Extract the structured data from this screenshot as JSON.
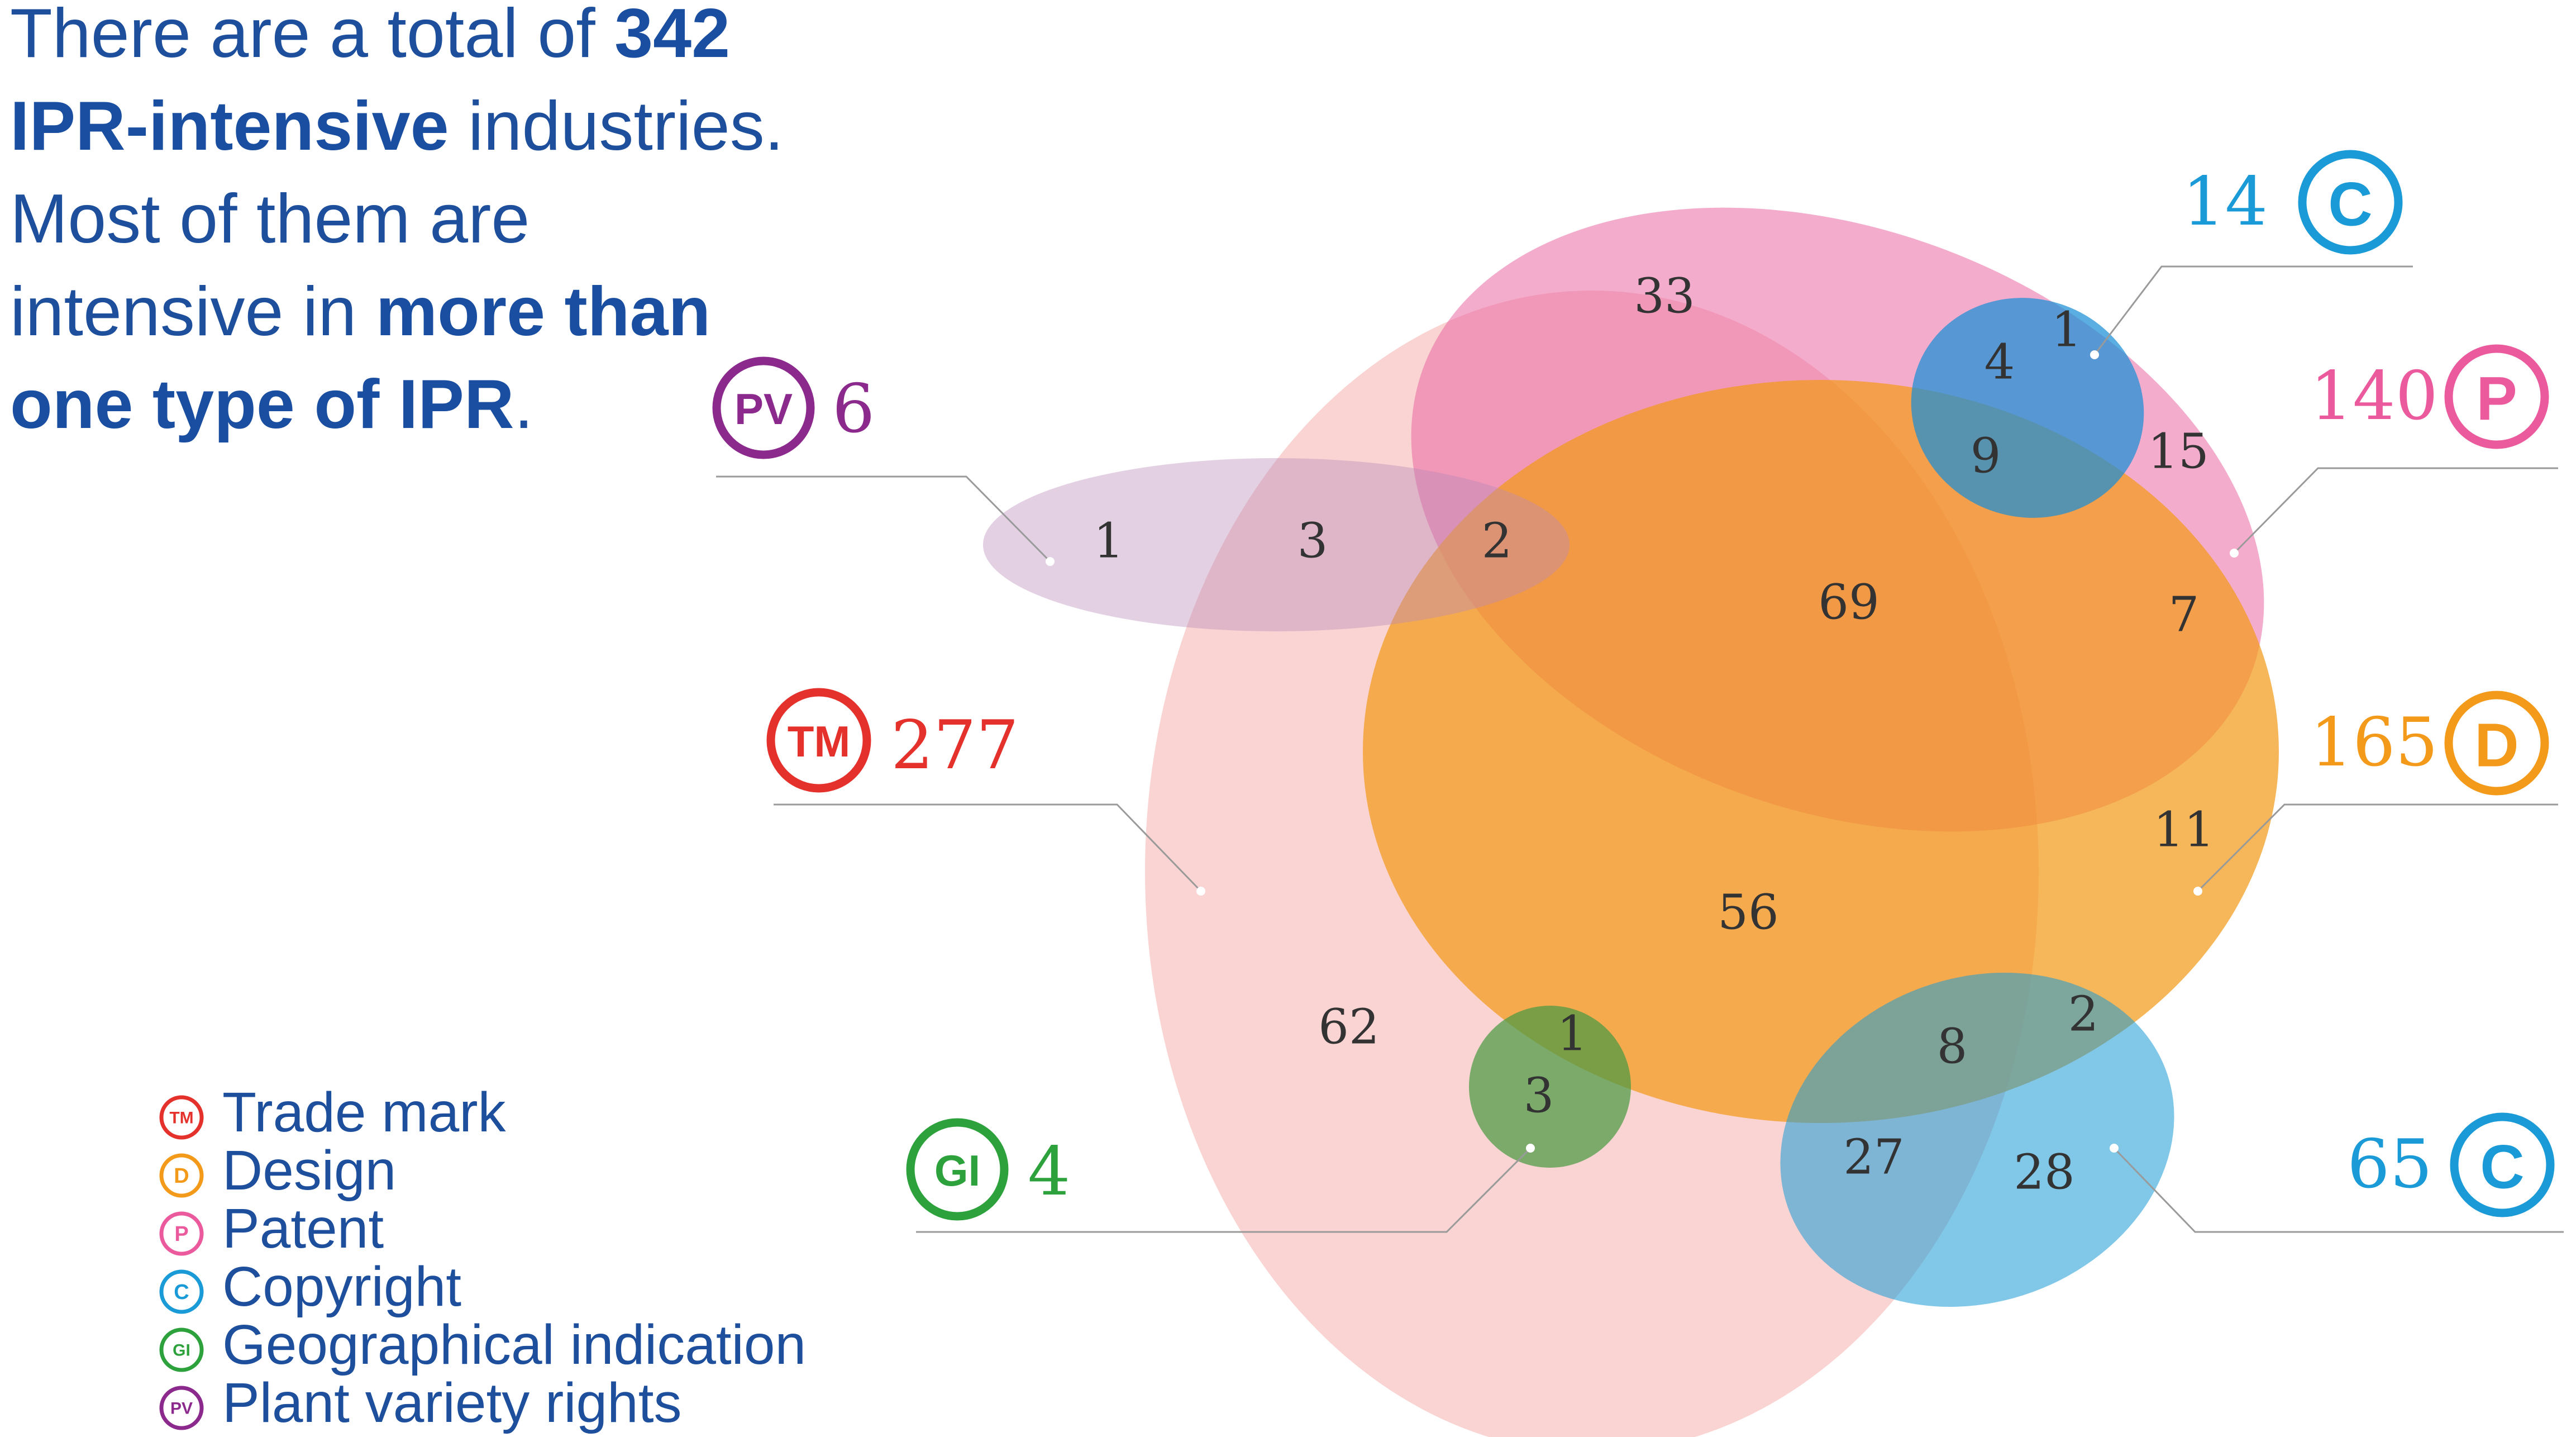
{
  "headline": {
    "line1_a": "There are a total of ",
    "line1_b": "342",
    "line2_a": "IPR-intensive",
    "line2_b": " industries.",
    "line3": "Most of them are",
    "line4_a": "intensive in ",
    "line4_b": "more than",
    "line5_a": "one type of IPR",
    "line5_b": "."
  },
  "colors": {
    "trade_mark": "#e5312c",
    "design": "#f39a1a",
    "patent": "#ea5a9c",
    "copyright": "#1a9ad6",
    "geographical_indication": "#2da23c",
    "plant_variety_rights": "#8b2a8c",
    "text_blue": "#1d4f9c"
  },
  "callouts": [
    {
      "id": "pv",
      "badge": "PV",
      "count": "6",
      "color": "#8b2a8c"
    },
    {
      "id": "tm",
      "badge": "TM",
      "count": "277",
      "color": "#e5312c"
    },
    {
      "id": "gi",
      "badge": "GI",
      "count": "4",
      "color": "#2da23c"
    },
    {
      "id": "c_top",
      "badge": "C",
      "count": "14",
      "color": "#1a9ad6"
    },
    {
      "id": "p",
      "badge": "P",
      "count": "140",
      "color": "#ea5a9c"
    },
    {
      "id": "d",
      "badge": "D",
      "count": "165",
      "color": "#f39a1a"
    },
    {
      "id": "c_bottom",
      "badge": "C",
      "count": "65",
      "color": "#1a9ad6"
    }
  ],
  "regions": {
    "pv_only": "1",
    "pv_tm": "3",
    "pv_tm_p_d": "2",
    "tm_p": "33",
    "c_p_tm": "4",
    "c_p": "1",
    "c_p_tm_d": "9",
    "p_only": "15",
    "tm_p_d": "69",
    "p_d": "7",
    "d_only": "11",
    "tm_d": "56",
    "tm_only": "62",
    "gi_tm_d": "1",
    "gi_tm": "3",
    "c_tm_d": "8",
    "c_d": "2",
    "c_tm": "27",
    "c_only": "28"
  },
  "legend": [
    {
      "badge": "TM",
      "label": "Trade mark",
      "color": "#e5312c"
    },
    {
      "badge": "D",
      "label": "Design",
      "color": "#f39a1a"
    },
    {
      "badge": "P",
      "label": "Patent",
      "color": "#ea5a9c"
    },
    {
      "badge": "C",
      "label": "Copyright",
      "color": "#1a9ad6"
    },
    {
      "badge": "GI",
      "label": "Geographical indication",
      "color": "#2da23c"
    },
    {
      "badge": "PV",
      "label": "Plant variety rights",
      "color": "#8b2a8c"
    }
  ]
}
